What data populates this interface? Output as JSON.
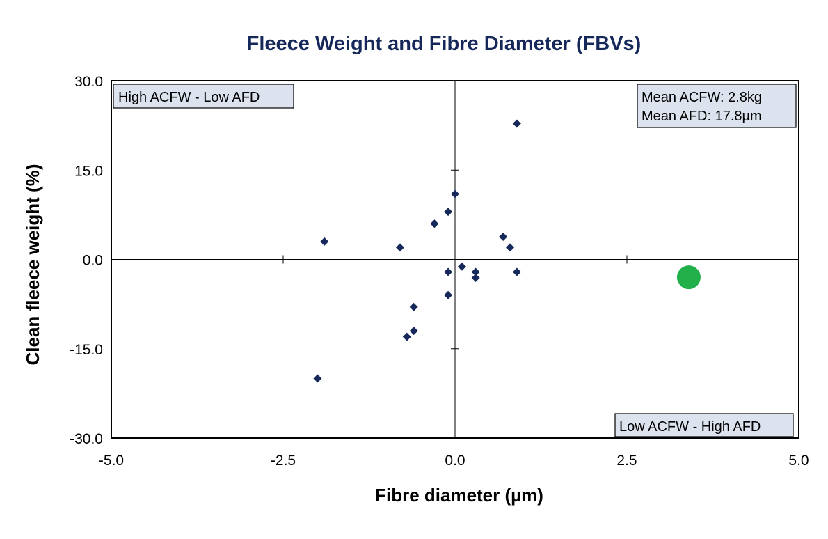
{
  "chart_data": {
    "type": "scatter",
    "title": "Fleece Weight and Fibre Diameter (FBVs)",
    "xlabel": "Fibre diameter (µm)",
    "ylabel": "Clean fleece weight (%)",
    "xlim": [
      -5.0,
      5.0
    ],
    "ylim": [
      -30.0,
      30.0
    ],
    "x_ticks": [
      "-5.0",
      "-2.5",
      "0.0",
      "2.5",
      "5.0"
    ],
    "y_ticks": [
      "30.0",
      "15.0",
      "0.0",
      "-15.0",
      "-30.0"
    ],
    "grid": false,
    "quadrant_labels": {
      "top_left": "High ACFW - Low AFD",
      "bottom_right": "Low ACFW - High AFD"
    },
    "mean_info": [
      "Mean ACFW: 2.8kg",
      "Mean AFD: 17.8µm"
    ],
    "series": [
      {
        "marker": "diamond",
        "color": "#16285a",
        "points": [
          {
            "x": 0.9,
            "y": 22.8
          },
          {
            "x": 0.0,
            "y": 11.0
          },
          {
            "x": -0.1,
            "y": 8.0
          },
          {
            "x": -0.3,
            "y": 6.0
          },
          {
            "x": -1.9,
            "y": 3.0
          },
          {
            "x": -0.8,
            "y": 2.0
          },
          {
            "x": 0.7,
            "y": 3.8
          },
          {
            "x": 0.8,
            "y": 2.0
          },
          {
            "x": 0.1,
            "y": -1.2
          },
          {
            "x": -0.1,
            "y": -2.1
          },
          {
            "x": 0.3,
            "y": -2.1
          },
          {
            "x": 0.9,
            "y": -2.1
          },
          {
            "x": 0.3,
            "y": -3.1
          },
          {
            "x": -0.1,
            "y": -6.0
          },
          {
            "x": -0.6,
            "y": -8.0
          },
          {
            "x": -0.6,
            "y": -12.0
          },
          {
            "x": -0.7,
            "y": -13.0
          },
          {
            "x": -2.0,
            "y": -20.0
          }
        ]
      },
      {
        "marker": "circle",
        "color": "#22b04b",
        "points": [
          {
            "x": 3.4,
            "y": -3.0
          }
        ]
      }
    ]
  }
}
